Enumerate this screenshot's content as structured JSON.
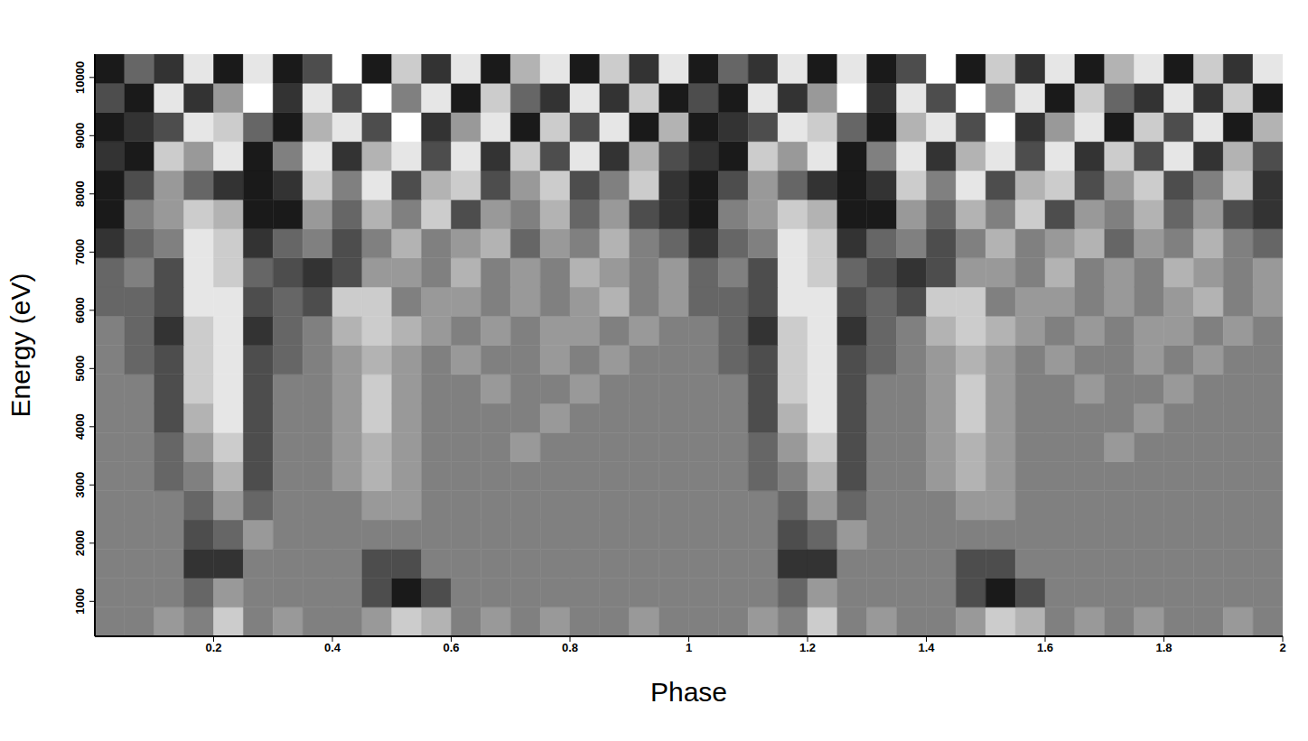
{
  "chart_data": {
    "type": "heatmap",
    "x_label": "Phase",
    "y_label": "Energy (eV)",
    "xlim": [
      0,
      2
    ],
    "ylim": [
      400,
      10400
    ],
    "xticks": [
      0.2,
      0.4,
      0.6,
      0.8,
      1,
      1.2,
      1.4,
      1.6,
      1.8,
      2
    ],
    "yticks": [
      1000,
      2000,
      3000,
      4000,
      5000,
      6000,
      7000,
      8000,
      9000,
      10000
    ],
    "grid": false,
    "zlim": [
      0,
      1
    ],
    "xbins": [
      0,
      0.05,
      0.1,
      0.15,
      0.2,
      0.25,
      0.3,
      0.35,
      0.4,
      0.45,
      0.5,
      0.55,
      0.6,
      0.65,
      0.7,
      0.75,
      0.8,
      0.85,
      0.9,
      0.95,
      1,
      1.05,
      1.1,
      1.15,
      1.2,
      1.25,
      1.3,
      1.35,
      1.4,
      1.45,
      1.5,
      1.55,
      1.6,
      1.65,
      1.7,
      1.75,
      1.8,
      1.85,
      1.9,
      1.95,
      2
    ],
    "ybins": [
      400,
      900,
      1400,
      1900,
      2400,
      2900,
      3400,
      3900,
      4400,
      4900,
      5400,
      5900,
      6400,
      6900,
      7400,
      7900,
      8400,
      8900,
      9400,
      9900,
      10400
    ],
    "z": [
      [
        0.5,
        0.5,
        0.6,
        0.5,
        0.8,
        0.5,
        0.6,
        0.5,
        0.5,
        0.6,
        0.8,
        0.7,
        0.5,
        0.6,
        0.5,
        0.6,
        0.5,
        0.5,
        0.6,
        0.5,
        0.5,
        0.5,
        0.6,
        0.5,
        0.8,
        0.5,
        0.6,
        0.5,
        0.5,
        0.6,
        0.8,
        0.7,
        0.5,
        0.6,
        0.5,
        0.6,
        0.5,
        0.5,
        0.6,
        0.5
      ],
      [
        0.5,
        0.5,
        0.5,
        0.4,
        0.6,
        0.5,
        0.5,
        0.5,
        0.5,
        0.3,
        0.1,
        0.3,
        0.5,
        0.5,
        0.5,
        0.5,
        0.5,
        0.5,
        0.5,
        0.5,
        0.5,
        0.5,
        0.5,
        0.4,
        0.6,
        0.5,
        0.5,
        0.5,
        0.5,
        0.3,
        0.1,
        0.3,
        0.5,
        0.5,
        0.5,
        0.5,
        0.5,
        0.5,
        0.5,
        0.5
      ],
      [
        0.5,
        0.5,
        0.5,
        0.2,
        0.2,
        0.5,
        0.5,
        0.5,
        0.5,
        0.3,
        0.3,
        0.5,
        0.5,
        0.5,
        0.5,
        0.5,
        0.5,
        0.5,
        0.5,
        0.5,
        0.5,
        0.5,
        0.5,
        0.2,
        0.2,
        0.5,
        0.5,
        0.5,
        0.5,
        0.3,
        0.3,
        0.5,
        0.5,
        0.5,
        0.5,
        0.5,
        0.5,
        0.5,
        0.5,
        0.5
      ],
      [
        0.5,
        0.5,
        0.5,
        0.3,
        0.4,
        0.6,
        0.5,
        0.5,
        0.5,
        0.5,
        0.5,
        0.5,
        0.5,
        0.5,
        0.5,
        0.5,
        0.5,
        0.5,
        0.5,
        0.5,
        0.5,
        0.5,
        0.5,
        0.3,
        0.4,
        0.6,
        0.5,
        0.5,
        0.5,
        0.5,
        0.5,
        0.5,
        0.5,
        0.5,
        0.5,
        0.5,
        0.5,
        0.5,
        0.5,
        0.5
      ],
      [
        0.5,
        0.5,
        0.5,
        0.4,
        0.6,
        0.4,
        0.5,
        0.5,
        0.5,
        0.6,
        0.6,
        0.5,
        0.5,
        0.5,
        0.5,
        0.5,
        0.5,
        0.5,
        0.5,
        0.5,
        0.5,
        0.5,
        0.5,
        0.4,
        0.6,
        0.4,
        0.5,
        0.5,
        0.5,
        0.6,
        0.6,
        0.5,
        0.5,
        0.5,
        0.5,
        0.5,
        0.5,
        0.5,
        0.5,
        0.5
      ],
      [
        0.5,
        0.5,
        0.4,
        0.5,
        0.7,
        0.3,
        0.5,
        0.5,
        0.6,
        0.7,
        0.6,
        0.5,
        0.5,
        0.5,
        0.5,
        0.5,
        0.5,
        0.5,
        0.5,
        0.5,
        0.5,
        0.5,
        0.4,
        0.5,
        0.7,
        0.3,
        0.5,
        0.5,
        0.6,
        0.7,
        0.6,
        0.5,
        0.5,
        0.5,
        0.5,
        0.5,
        0.5,
        0.5,
        0.5,
        0.5
      ],
      [
        0.5,
        0.5,
        0.4,
        0.6,
        0.8,
        0.3,
        0.5,
        0.5,
        0.6,
        0.7,
        0.6,
        0.5,
        0.5,
        0.5,
        0.6,
        0.5,
        0.5,
        0.5,
        0.5,
        0.5,
        0.5,
        0.5,
        0.4,
        0.6,
        0.8,
        0.3,
        0.5,
        0.5,
        0.6,
        0.7,
        0.6,
        0.5,
        0.5,
        0.5,
        0.6,
        0.5,
        0.5,
        0.5,
        0.5,
        0.5
      ],
      [
        0.5,
        0.5,
        0.3,
        0.7,
        0.9,
        0.3,
        0.5,
        0.5,
        0.6,
        0.8,
        0.6,
        0.5,
        0.5,
        0.5,
        0.5,
        0.6,
        0.5,
        0.5,
        0.5,
        0.5,
        0.5,
        0.5,
        0.3,
        0.7,
        0.9,
        0.3,
        0.5,
        0.5,
        0.6,
        0.8,
        0.6,
        0.5,
        0.5,
        0.5,
        0.5,
        0.6,
        0.5,
        0.5,
        0.5,
        0.5
      ],
      [
        0.5,
        0.5,
        0.3,
        0.8,
        0.9,
        0.3,
        0.5,
        0.5,
        0.6,
        0.8,
        0.6,
        0.5,
        0.5,
        0.6,
        0.5,
        0.5,
        0.6,
        0.5,
        0.5,
        0.5,
        0.5,
        0.5,
        0.3,
        0.8,
        0.9,
        0.3,
        0.5,
        0.5,
        0.6,
        0.8,
        0.6,
        0.5,
        0.5,
        0.6,
        0.5,
        0.5,
        0.6,
        0.5,
        0.5,
        0.5
      ],
      [
        0.5,
        0.4,
        0.3,
        0.8,
        0.9,
        0.3,
        0.4,
        0.5,
        0.6,
        0.7,
        0.6,
        0.5,
        0.6,
        0.5,
        0.5,
        0.6,
        0.5,
        0.6,
        0.5,
        0.5,
        0.5,
        0.4,
        0.3,
        0.8,
        0.9,
        0.3,
        0.4,
        0.5,
        0.6,
        0.7,
        0.6,
        0.5,
        0.6,
        0.5,
        0.5,
        0.6,
        0.5,
        0.6,
        0.5,
        0.5
      ],
      [
        0.5,
        0.4,
        0.2,
        0.8,
        0.9,
        0.2,
        0.4,
        0.5,
        0.7,
        0.8,
        0.7,
        0.6,
        0.5,
        0.6,
        0.5,
        0.6,
        0.6,
        0.5,
        0.6,
        0.5,
        0.5,
        0.4,
        0.2,
        0.8,
        0.9,
        0.2,
        0.4,
        0.5,
        0.7,
        0.8,
        0.7,
        0.6,
        0.5,
        0.6,
        0.5,
        0.6,
        0.6,
        0.5,
        0.6,
        0.5
      ],
      [
        0.4,
        0.4,
        0.3,
        0.9,
        0.9,
        0.3,
        0.4,
        0.3,
        0.8,
        0.8,
        0.5,
        0.6,
        0.6,
        0.5,
        0.6,
        0.5,
        0.6,
        0.7,
        0.5,
        0.6,
        0.4,
        0.4,
        0.3,
        0.9,
        0.9,
        0.3,
        0.4,
        0.3,
        0.8,
        0.8,
        0.5,
        0.6,
        0.6,
        0.5,
        0.6,
        0.5,
        0.6,
        0.7,
        0.5,
        0.6
      ],
      [
        0.4,
        0.5,
        0.3,
        0.9,
        0.8,
        0.4,
        0.3,
        0.2,
        0.3,
        0.6,
        0.6,
        0.5,
        0.7,
        0.5,
        0.6,
        0.5,
        0.7,
        0.6,
        0.5,
        0.6,
        0.4,
        0.5,
        0.3,
        0.9,
        0.8,
        0.4,
        0.3,
        0.2,
        0.3,
        0.6,
        0.6,
        0.5,
        0.7,
        0.5,
        0.6,
        0.5,
        0.7,
        0.6,
        0.5,
        0.6
      ],
      [
        0.2,
        0.4,
        0.5,
        0.9,
        0.8,
        0.2,
        0.4,
        0.5,
        0.3,
        0.5,
        0.7,
        0.5,
        0.6,
        0.7,
        0.4,
        0.6,
        0.5,
        0.7,
        0.5,
        0.4,
        0.2,
        0.4,
        0.5,
        0.9,
        0.8,
        0.2,
        0.4,
        0.5,
        0.3,
        0.5,
        0.7,
        0.5,
        0.6,
        0.7,
        0.4,
        0.6,
        0.5,
        0.7,
        0.5,
        0.4
      ],
      [
        0.1,
        0.5,
        0.6,
        0.8,
        0.7,
        0.1,
        0.1,
        0.6,
        0.4,
        0.7,
        0.5,
        0.8,
        0.3,
        0.6,
        0.5,
        0.7,
        0.4,
        0.6,
        0.3,
        0.2,
        0.1,
        0.5,
        0.6,
        0.8,
        0.7,
        0.1,
        0.1,
        0.6,
        0.4,
        0.7,
        0.5,
        0.8,
        0.3,
        0.6,
        0.5,
        0.7,
        0.4,
        0.6,
        0.3,
        0.2
      ],
      [
        0.1,
        0.3,
        0.6,
        0.4,
        0.2,
        0.1,
        0.2,
        0.8,
        0.5,
        0.9,
        0.3,
        0.7,
        0.8,
        0.3,
        0.6,
        0.8,
        0.3,
        0.5,
        0.8,
        0.2,
        0.1,
        0.3,
        0.6,
        0.4,
        0.2,
        0.1,
        0.2,
        0.8,
        0.5,
        0.9,
        0.3,
        0.7,
        0.8,
        0.3,
        0.6,
        0.8,
        0.3,
        0.5,
        0.8,
        0.2
      ],
      [
        0.2,
        0.1,
        0.8,
        0.6,
        0.9,
        0.1,
        0.5,
        0.9,
        0.2,
        0.7,
        0.9,
        0.3,
        0.9,
        0.2,
        0.8,
        0.3,
        0.9,
        0.2,
        0.7,
        0.3,
        0.2,
        0.1,
        0.8,
        0.6,
        0.9,
        0.1,
        0.5,
        0.9,
        0.2,
        0.7,
        0.9,
        0.3,
        0.9,
        0.2,
        0.8,
        0.3,
        0.9,
        0.2,
        0.7,
        0.3
      ],
      [
        0.1,
        0.2,
        0.3,
        0.9,
        0.8,
        0.4,
        0.1,
        0.7,
        0.9,
        0.3,
        1.0,
        0.2,
        0.6,
        0.9,
        0.1,
        0.8,
        0.3,
        0.9,
        0.1,
        0.7,
        0.1,
        0.2,
        0.3,
        0.9,
        0.8,
        0.4,
        0.1,
        0.7,
        0.9,
        0.3,
        1.0,
        0.2,
        0.6,
        0.9,
        0.1,
        0.8,
        0.3,
        0.9,
        0.1,
        0.7
      ],
      [
        0.3,
        0.1,
        0.9,
        0.2,
        0.6,
        1.0,
        0.2,
        0.9,
        0.3,
        1.0,
        0.5,
        0.9,
        0.1,
        0.8,
        0.4,
        0.2,
        0.9,
        0.2,
        0.8,
        0.1,
        0.3,
        0.1,
        0.9,
        0.2,
        0.6,
        1.0,
        0.2,
        0.9,
        0.3,
        1.0,
        0.5,
        0.9,
        0.1,
        0.8,
        0.4,
        0.2,
        0.9,
        0.2,
        0.8,
        0.1
      ],
      [
        0.1,
        0.4,
        0.2,
        0.9,
        0.1,
        0.9,
        0.1,
        0.3,
        1.0,
        0.1,
        0.8,
        0.2,
        0.9,
        0.1,
        0.7,
        0.9,
        0.1,
        0.8,
        0.2,
        0.9,
        0.1,
        0.4,
        0.2,
        0.9,
        0.1,
        0.9,
        0.1,
        0.3,
        1.0,
        0.1,
        0.8,
        0.2,
        0.9,
        0.1,
        0.7,
        0.9,
        0.1,
        0.8,
        0.2,
        0.9
      ]
    ]
  }
}
